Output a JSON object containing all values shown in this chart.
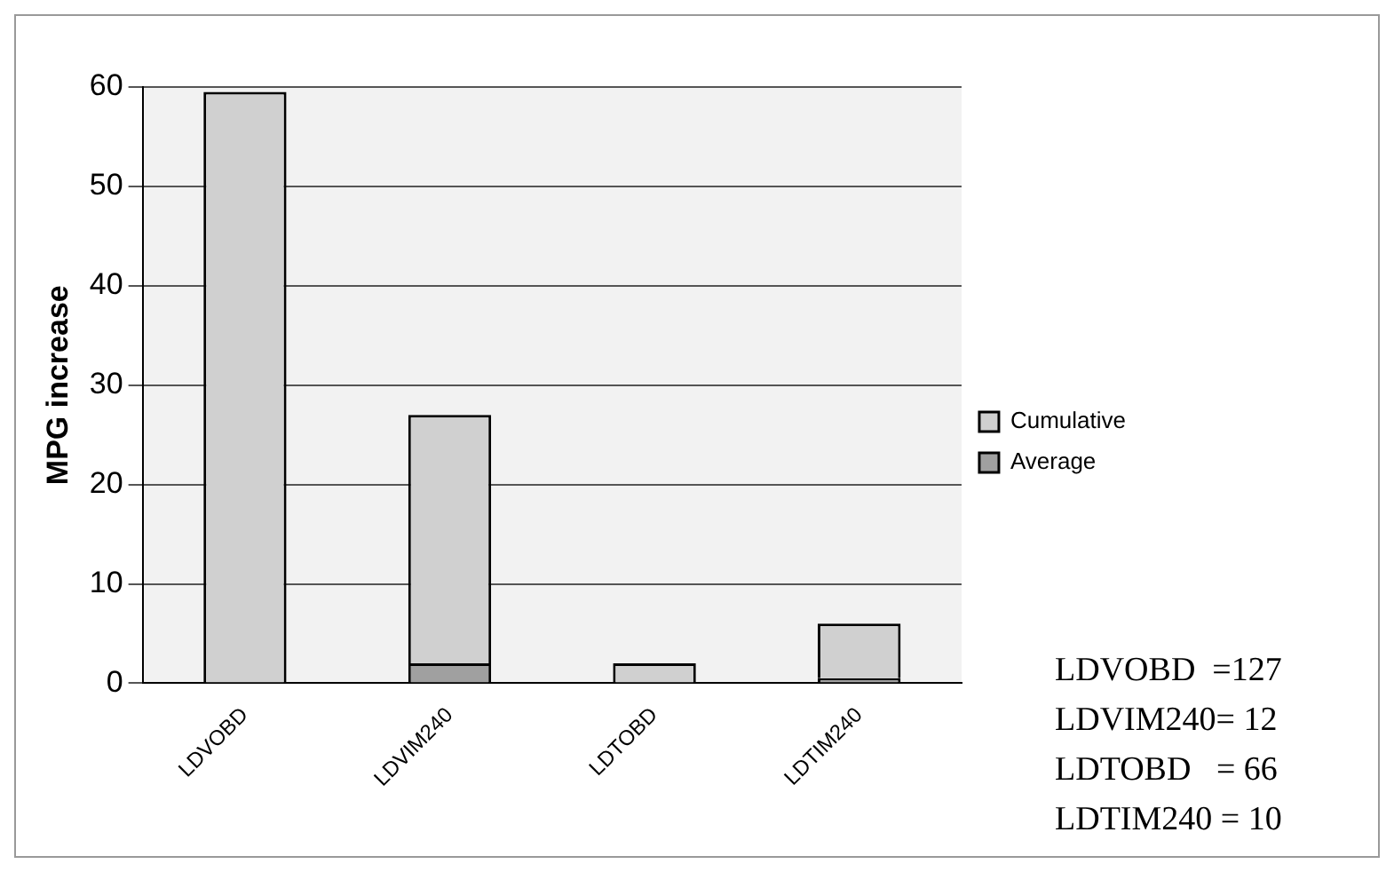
{
  "chart_data": {
    "type": "bar",
    "stacked": true,
    "ylabel": "MPG increase",
    "categories": [
      "LDVOBD",
      "LDVIM240",
      "LDTOBD",
      "LDTIM240"
    ],
    "series": [
      {
        "name": "Average",
        "color": "#a0a0a0",
        "values": [
          0,
          2,
          0,
          0.5
        ]
      },
      {
        "name": "Cumulative",
        "color": "#d0d0d0",
        "values": [
          59.5,
          25,
          2,
          5.5
        ]
      }
    ],
    "ylim": [
      0,
      60
    ],
    "yticks": [
      0,
      10,
      20,
      30,
      40,
      50,
      60
    ],
    "grid": "y",
    "legend": "right",
    "annotations": [
      "LDVOBD  =127",
      "LDVIM240= 12",
      "LDTOBD   = 66",
      "LDTIM240 = 10"
    ]
  }
}
